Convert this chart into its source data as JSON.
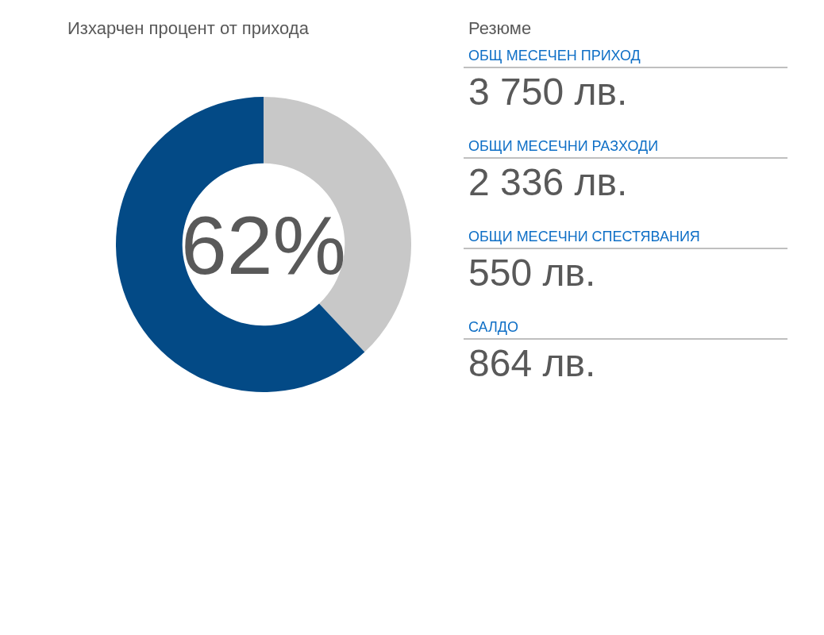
{
  "chart_data": [
    {
      "type": "donut",
      "title": "Изхарчен процент от прихода",
      "categories": [
        null,
        null
      ],
      "values": [
        38,
        62
      ],
      "colors": [
        "#c8c8c8",
        "#034a86"
      ],
      "annotations": [
        "62%"
      ]
    },
    {
      "type": "other",
      "title": "Резюме",
      "annotations": [
        "ОБЩ МЕСЕЧЕН ПРИХОД",
        "3 750 лв.",
        "ОБЩИ МЕСЕЧНИ РАЗХОДИ",
        "2 336 лв.",
        "ОБЩИ МЕСЕЧНИ СПЕСТЯВАНИЯ",
        "550 лв.",
        "САЛДО",
        "864 лв."
      ]
    }
  ]
}
